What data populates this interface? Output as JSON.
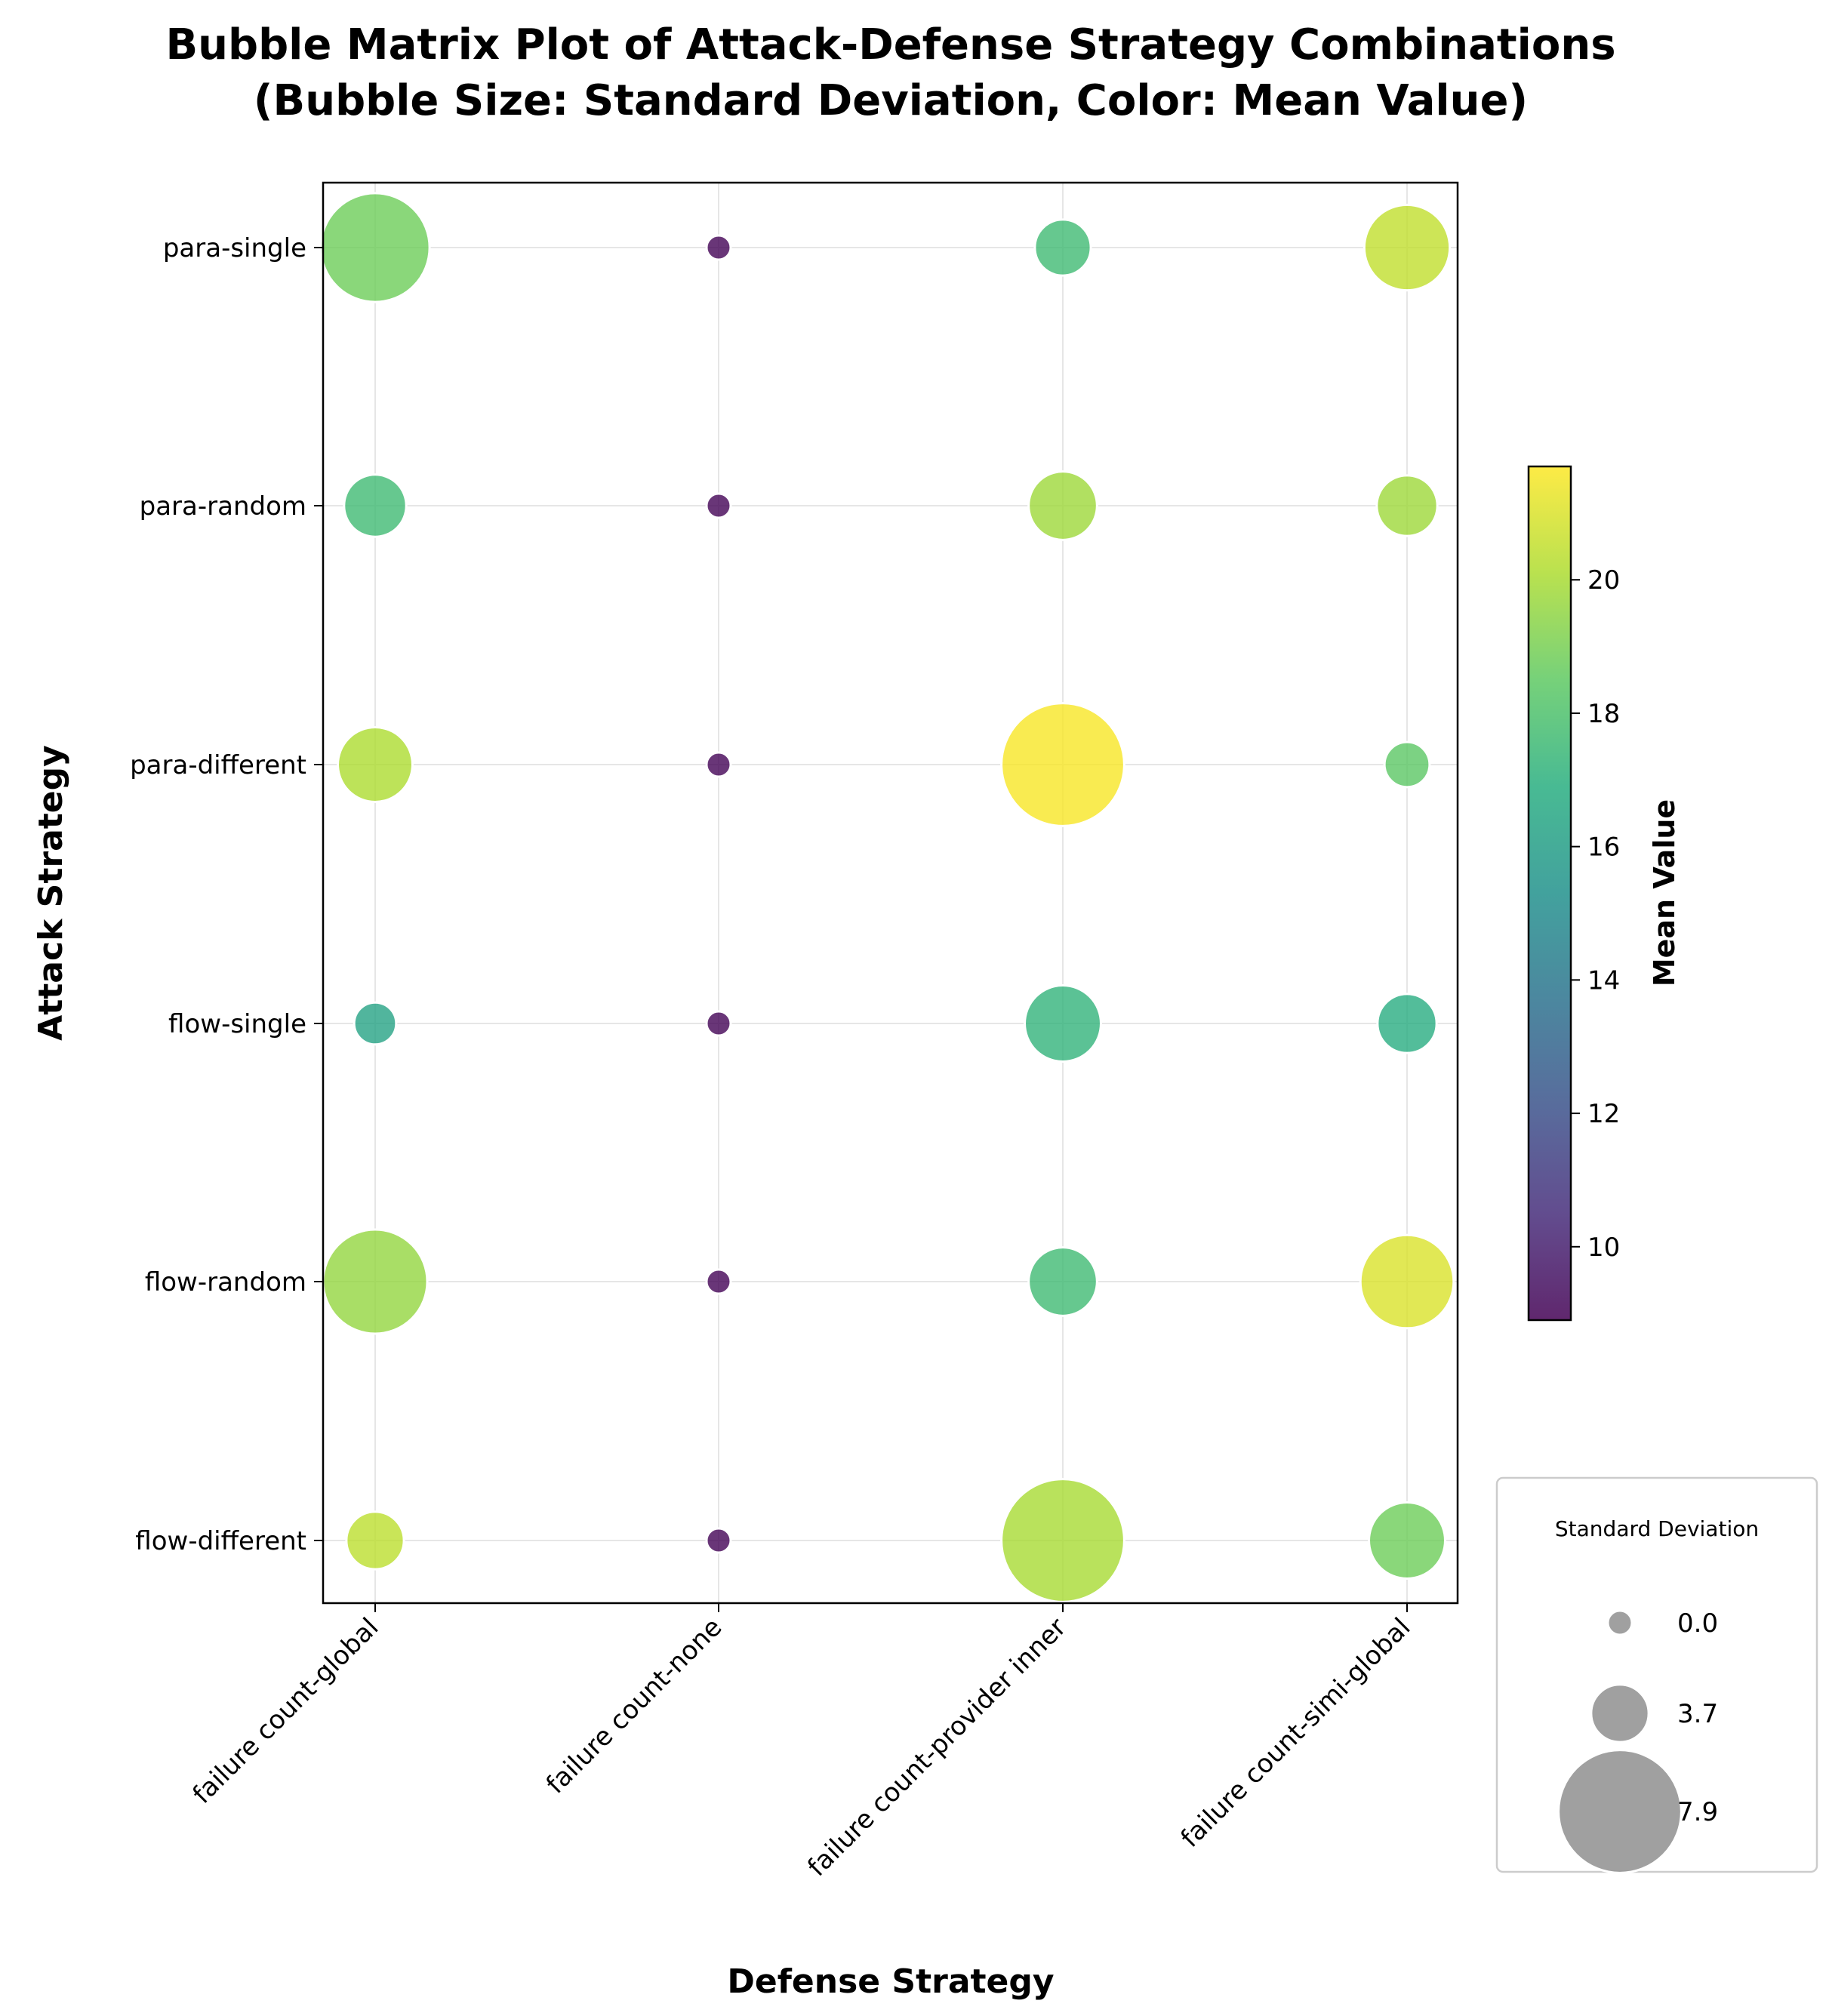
{
  "chart_data": {
    "type": "scatter",
    "title_lines": [
      "Bubble Matrix Plot of Attack-Defense Strategy Combinations",
      "(Bubble Size: Standard Deviation, Color: Mean Value)"
    ],
    "xlabel": "Defense Strategy",
    "ylabel": "Attack Strategy",
    "x_categories": [
      "failure count-global",
      "failure count-none",
      "failure count-provider inner",
      "failure count-simi-global"
    ],
    "y_categories": [
      "para-single",
      "para-random",
      "para-different",
      "flow-single",
      "flow-random",
      "flow-different"
    ],
    "colorscale": "viridis",
    "color_range": [
      8.9,
      21.7
    ],
    "colorbar_label": "Mean Value",
    "colorbar_ticks": [
      10,
      12,
      14,
      16,
      18,
      20
    ],
    "size_legend": {
      "title": "Standard Deviation",
      "entries": [
        {
          "label": "0.0",
          "value": 0.0
        },
        {
          "label": "3.7",
          "value": 3.7
        },
        {
          "label": "7.9",
          "value": 7.9
        }
      ]
    },
    "grid": true,
    "points": [
      {
        "x": "failure count-global",
        "y": "para-single",
        "mean": 18.8,
        "std": 7.0
      },
      {
        "x": "failure count-none",
        "y": "para-single",
        "mean": 9.0,
        "std": 0.7
      },
      {
        "x": "failure count-provider inner",
        "y": "para-single",
        "mean": 17.6,
        "std": 3.6
      },
      {
        "x": "failure count-simi-global",
        "y": "para-single",
        "mean": 20.5,
        "std": 5.5
      },
      {
        "x": "failure count-global",
        "y": "para-random",
        "mean": 17.6,
        "std": 4.0
      },
      {
        "x": "failure count-none",
        "y": "para-random",
        "mean": 9.0,
        "std": 0.7
      },
      {
        "x": "failure count-provider inner",
        "y": "para-random",
        "mean": 19.8,
        "std": 4.4
      },
      {
        "x": "failure count-simi-global",
        "y": "para-random",
        "mean": 19.8,
        "std": 3.9
      },
      {
        "x": "failure count-global",
        "y": "para-different",
        "mean": 20.1,
        "std": 4.8
      },
      {
        "x": "failure count-none",
        "y": "para-different",
        "mean": 9.0,
        "std": 0.7
      },
      {
        "x": "failure count-provider inner",
        "y": "para-different",
        "mean": 21.6,
        "std": 7.9
      },
      {
        "x": "failure count-simi-global",
        "y": "para-different",
        "mean": 18.4,
        "std": 2.9
      },
      {
        "x": "failure count-global",
        "y": "flow-single",
        "mean": 16.3,
        "std": 2.7
      },
      {
        "x": "failure count-none",
        "y": "flow-single",
        "mean": 9.0,
        "std": 0.6
      },
      {
        "x": "failure count-provider inner",
        "y": "flow-single",
        "mean": 17.2,
        "std": 4.9
      },
      {
        "x": "failure count-simi-global",
        "y": "flow-single",
        "mean": 16.8,
        "std": 3.8
      },
      {
        "x": "failure count-global",
        "y": "flow-random",
        "mean": 19.6,
        "std": 6.7
      },
      {
        "x": "failure count-none",
        "y": "flow-random",
        "mean": 9.0,
        "std": 0.7
      },
      {
        "x": "failure count-provider inner",
        "y": "flow-random",
        "mean": 17.6,
        "std": 4.4
      },
      {
        "x": "failure count-simi-global",
        "y": "flow-random",
        "mean": 21.0,
        "std": 6.0
      },
      {
        "x": "failure count-global",
        "y": "flow-different",
        "mean": 20.4,
        "std": 3.7
      },
      {
        "x": "failure count-none",
        "y": "flow-different",
        "mean": 9.0,
        "std": 0.6
      },
      {
        "x": "failure count-provider inner",
        "y": "flow-different",
        "mean": 20.0,
        "std": 7.9
      },
      {
        "x": "failure count-simi-global",
        "y": "flow-different",
        "mean": 18.8,
        "std": 4.9
      }
    ]
  }
}
